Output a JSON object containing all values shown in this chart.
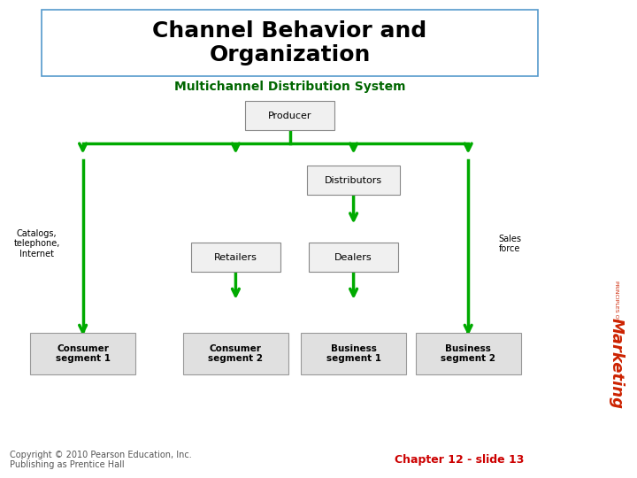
{
  "title": "Channel Behavior and\nOrganization",
  "subtitle": "Multichannel Distribution System",
  "subtitle_color": "#006600",
  "copyright": "Copyright © 2010 Pearson Education, Inc.\nPublishing as Prentice Hall",
  "chapter": "Chapter 12 - slide 13",
  "chapter_color": "#cc0000",
  "bg_color": "#ffffff",
  "green": "#00aa00",
  "title_border_color": "#5599cc",
  "box_face": "#f0f0f0",
  "box_edge": "#888888",
  "seg_face": "#e0e0e0",
  "seg_edge": "#999999",
  "marketing_color": "#cc2200",
  "principles_color": "#cc2200",
  "side_label_color": "#000000",
  "copyright_color": "#555555"
}
